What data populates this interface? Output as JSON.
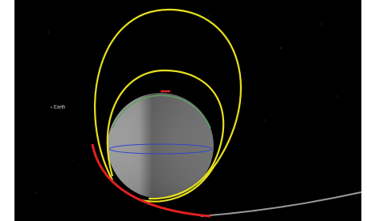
{
  "scene": {
    "earth_label": "Earth"
  }
}
